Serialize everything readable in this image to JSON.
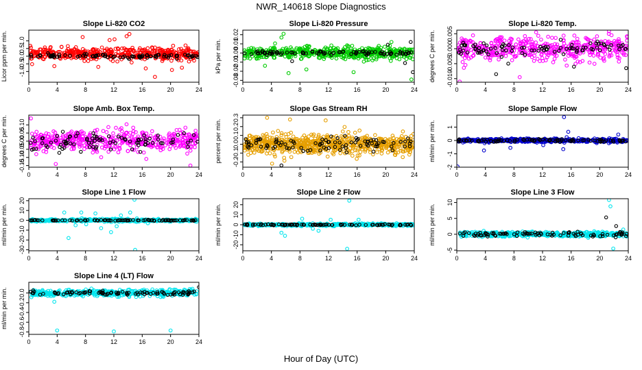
{
  "figure": {
    "title": "NWR_140618  Slope Diagnostics",
    "xlabel": "Hour of Day (UTC)"
  },
  "chart_data": [
    {
      "type": "scatter",
      "title": "Slope Li-820 CO2",
      "ylabel": "Licor ppm per min.",
      "xlim": [
        0,
        24
      ],
      "xticks": [
        0,
        4,
        8,
        12,
        16,
        20,
        24
      ],
      "ylim": [
        -1.7,
        1.7
      ],
      "yticks": [
        -1.0,
        -0.5,
        0.0,
        0.5,
        1.0
      ],
      "yticklabels": [
        "-1.0",
        "-0.5",
        "0.0",
        "0.5",
        "1.0"
      ],
      "series": [
        {
          "color": "#ff0000",
          "center": 0.15,
          "spread": 0.35,
          "count": 480,
          "outliers": [
            [
              14.2,
              1.45
            ],
            [
              13.8,
              1.3
            ],
            [
              12.1,
              1.1
            ],
            [
              7.6,
              1.25
            ],
            [
              11.4,
              1.05
            ],
            [
              16.5,
              -0.8
            ],
            [
              17.8,
              -1.35
            ],
            [
              20.2,
              -0.9
            ],
            [
              3.6,
              -0.65
            ],
            [
              9.8,
              -0.7
            ],
            [
              21.6,
              -0.75
            ]
          ]
        },
        {
          "color": "#000000",
          "center": 0.0,
          "spread": 0.12,
          "count": 90,
          "outliers": []
        }
      ]
    },
    {
      "type": "scatter",
      "title": "Slope Li-820 Pressure",
      "ylabel": "kPa per min.",
      "xlim": [
        0,
        24
      ],
      "xticks": [
        0,
        4,
        8,
        12,
        16,
        20,
        24
      ],
      "ylim": [
        -0.032,
        0.025
      ],
      "yticks": [
        -0.03,
        -0.02,
        -0.01,
        0.0,
        0.01,
        0.02
      ],
      "yticklabels": [
        "-0.03",
        "-0.02",
        "-0.01",
        "0.00",
        "0.01",
        "0.02"
      ],
      "series": [
        {
          "color": "#00cc00",
          "center": 0.0,
          "spread": 0.006,
          "count": 520,
          "outliers": [
            [
              5.7,
              0.021
            ],
            [
              5.4,
              0.017
            ],
            [
              3.1,
              -0.014
            ],
            [
              6.4,
              -0.022
            ],
            [
              8.9,
              -0.018
            ],
            [
              15.5,
              -0.021
            ],
            [
              23.6,
              -0.029
            ],
            [
              20.8,
              0.012
            ]
          ]
        },
        {
          "color": "#000000",
          "center": 0.0,
          "spread": 0.002,
          "count": 90,
          "outliers": [
            [
              23.8,
              -0.021
            ],
            [
              23.5,
              0.012
            ],
            [
              22.7,
              -0.011
            ],
            [
              6.9,
              -0.009
            ],
            [
              20.3,
              0.009
            ]
          ]
        }
      ]
    },
    {
      "type": "scatter",
      "title": "Slope Li-820 Temp.",
      "ylabel": "degrees C per min.",
      "xlim": [
        0,
        24
      ],
      "xticks": [
        0,
        4,
        8,
        12,
        16,
        20,
        24
      ],
      "ylim": [
        -0.0112,
        0.0062
      ],
      "yticks": [
        -0.01,
        -0.005,
        0.0,
        0.005
      ],
      "yticklabels": [
        "-0.010",
        "-0.005",
        "0.000",
        "0.005"
      ],
      "series": [
        {
          "color": "#ff00ff",
          "center": 0.0,
          "spread": 0.0035,
          "count": 460,
          "outliers": [
            [
              0.4,
              -0.011
            ],
            [
              11.1,
              0.0055
            ],
            [
              21.3,
              0.0058
            ],
            [
              8.8,
              -0.0095
            ]
          ]
        },
        {
          "color": "#000000",
          "center": 0.0,
          "spread": 0.002,
          "count": 90,
          "outliers": [
            [
              5.5,
              -0.0085
            ],
            [
              23.7,
              -0.0065
            ],
            [
              7.2,
              -0.005
            ],
            [
              16.4,
              -0.006
            ]
          ]
        }
      ]
    },
    {
      "type": "scatter",
      "title": "Slope Amb. Box Temp.",
      "ylabel": "degrees C per min.",
      "xlim": [
        0,
        24
      ],
      "xticks": [
        0,
        4,
        8,
        12,
        16,
        20,
        24
      ],
      "ylim": [
        -0.16,
        0.16
      ],
      "yticks": [
        -0.15,
        -0.1,
        -0.05,
        0.0,
        0.05,
        0.1
      ],
      "yticklabels": [
        "-0.15",
        "-0.10",
        "-0.05",
        "0.00",
        "0.05",
        "0.10"
      ],
      "series": [
        {
          "color": "#ff00ff",
          "center": 0.0,
          "spread": 0.06,
          "count": 480,
          "outliers": [
            [
              3.8,
              -0.14
            ],
            [
              22.8,
              -0.15
            ],
            [
              0.3,
              0.14
            ]
          ]
        },
        {
          "color": "#000000",
          "center": 0.0,
          "spread": 0.05,
          "count": 90,
          "outliers": []
        }
      ]
    },
    {
      "type": "scatter",
      "title": "Slope Gas Stream RH",
      "ylabel": "percent per min.",
      "xlim": [
        0,
        24
      ],
      "xticks": [
        0,
        4,
        8,
        12,
        16,
        20,
        24
      ],
      "ylim": [
        -0.26,
        0.33
      ],
      "yticks": [
        -0.2,
        -0.1,
        0.0,
        0.1,
        0.2,
        0.3
      ],
      "yticklabels": [
        "-0.2",
        "-0.1",
        "0.0",
        "0.1",
        "0.2",
        "0.3"
      ],
      "series": [
        {
          "color": "#e69f00",
          "center": 0.0,
          "spread": 0.1,
          "count": 700,
          "outliers": [
            [
              6.6,
              0.28
            ],
            [
              3.4,
              0.3
            ],
            [
              11.6,
              0.27
            ],
            [
              4.1,
              -0.22
            ]
          ]
        },
        {
          "color": "#000000",
          "center": 0.0,
          "spread": 0.07,
          "count": 90,
          "outliers": [
            [
              5.4,
              -0.24
            ]
          ]
        }
      ]
    },
    {
      "type": "scatter",
      "title": "Slope Sample Flow",
      "ylabel": "ml/min per min.",
      "xlim": [
        0,
        24
      ],
      "xticks": [
        0,
        4,
        8,
        12,
        16,
        20,
        24
      ],
      "ylim": [
        -2.0,
        1.9
      ],
      "yticks": [
        -2,
        -1,
        0,
        1
      ],
      "yticklabels": [
        "-2",
        "-1",
        "0",
        "1"
      ],
      "series": [
        {
          "color": "#0000cc",
          "center": 0.0,
          "spread": 0.12,
          "count": 520,
          "outliers": [
            [
              0.1,
              -1.95
            ],
            [
              15.0,
              1.75
            ],
            [
              3.8,
              -0.75
            ],
            [
              15.6,
              0.65
            ],
            [
              14.9,
              -0.65
            ],
            [
              7.5,
              -0.55
            ],
            [
              12.1,
              -0.35
            ],
            [
              22.6,
              0.45
            ]
          ]
        },
        {
          "color": "#000000",
          "center": 0.0,
          "spread": 0.1,
          "count": 90,
          "outliers": []
        }
      ]
    },
    {
      "type": "scatter",
      "title": "Slope Line 1 Flow",
      "ylabel": "ml/min per min.",
      "xlim": [
        0,
        24
      ],
      "xticks": [
        0,
        4,
        8,
        12,
        16,
        20,
        24
      ],
      "ylim": [
        -31,
        22
      ],
      "yticks": [
        -30,
        -20,
        -10,
        0,
        10,
        20
      ],
      "yticklabels": [
        "-30",
        "-20",
        "-10",
        "0",
        "10",
        "20"
      ],
      "series": [
        {
          "color": "#00e5ee",
          "center": 0.0,
          "spread": 1.2,
          "count": 470,
          "outliers": [
            [
              14.9,
              21
            ],
            [
              5.0,
              8
            ],
            [
              6.6,
              -5
            ],
            [
              9.4,
              7
            ],
            [
              12.4,
              -6
            ],
            [
              11.6,
              -12
            ],
            [
              15.0,
              -30
            ],
            [
              8.1,
              -4
            ],
            [
              10.2,
              -8
            ],
            [
              14.3,
              8
            ],
            [
              16.8,
              -3
            ],
            [
              5.6,
              -18
            ],
            [
              7.4,
              8
            ],
            [
              13.0,
              5
            ]
          ]
        },
        {
          "color": "#000000",
          "center": 0.0,
          "spread": 0.4,
          "count": 90,
          "outliers": []
        }
      ]
    },
    {
      "type": "scatter",
      "title": "Slope Line 2 Flow",
      "ylabel": "ml/min per min.",
      "xlim": [
        0,
        24
      ],
      "xticks": [
        0,
        4,
        8,
        12,
        16,
        20,
        24
      ],
      "ylim": [
        -26,
        26
      ],
      "yticks": [
        -20,
        -10,
        0,
        10,
        20
      ],
      "yticklabels": [
        "-20",
        "-10",
        "0",
        "10",
        "20"
      ],
      "series": [
        {
          "color": "#00e5ee",
          "center": 0.0,
          "spread": 1.0,
          "count": 470,
          "outliers": [
            [
              14.9,
              24
            ],
            [
              14.6,
              -24
            ],
            [
              5.9,
              -11
            ],
            [
              5.4,
              -8
            ],
            [
              8.3,
              6
            ],
            [
              10.6,
              -6
            ],
            [
              12.3,
              5
            ],
            [
              9.8,
              -4
            ],
            [
              16.2,
              5
            ]
          ]
        },
        {
          "color": "#000000",
          "center": 0.0,
          "spread": 0.5,
          "count": 90,
          "outliers": []
        }
      ]
    },
    {
      "type": "scatter",
      "title": "Slope Line 3 Flow",
      "ylabel": "ml/min per min.",
      "xlim": [
        0,
        24
      ],
      "xticks": [
        0,
        4,
        8,
        12,
        16,
        20,
        24
      ],
      "ylim": [
        -5.2,
        11.2
      ],
      "yticks": [
        -5,
        0,
        5,
        10
      ],
      "yticklabels": [
        "-5",
        "0",
        "5",
        "10"
      ],
      "series": [
        {
          "color": "#00e5ee",
          "center": 0.0,
          "spread": 0.7,
          "count": 470,
          "outliers": [
            [
              21.3,
              10.8
            ],
            [
              21.5,
              8.8
            ],
            [
              21.9,
              -4.5
            ],
            [
              23.3,
              1.5
            ]
          ]
        },
        {
          "color": "#000000",
          "center": 0.0,
          "spread": 0.6,
          "count": 90,
          "outliers": [
            [
              20.9,
              5.3
            ],
            [
              22.3,
              2.6
            ]
          ]
        }
      ]
    },
    {
      "type": "scatter",
      "title": "Slope Line 4 (LT) Flow",
      "ylabel": "ml/min per min.",
      "xlim": [
        0,
        24
      ],
      "xticks": [
        0,
        4,
        8,
        12,
        16,
        20,
        24
      ],
      "ylim": [
        -0.85,
        0.22
      ],
      "yticks": [
        -0.8,
        -0.6,
        -0.4,
        -0.2,
        0.0
      ],
      "yticklabels": [
        "-0.8",
        "-0.6",
        "-0.4",
        "-0.2",
        "0.0"
      ],
      "series": [
        {
          "color": "#00e5ee",
          "center": 0.0,
          "spread": 0.06,
          "count": 470,
          "outliers": [
            [
              4.0,
              -0.77
            ],
            [
              12.0,
              -0.79
            ],
            [
              20.0,
              -0.77
            ],
            [
              3.6,
              -0.18
            ]
          ]
        },
        {
          "color": "#000000",
          "center": 0.0,
          "spread": 0.04,
          "count": 90,
          "outliers": [
            [
              24.0,
              0.12
            ]
          ]
        }
      ]
    }
  ]
}
